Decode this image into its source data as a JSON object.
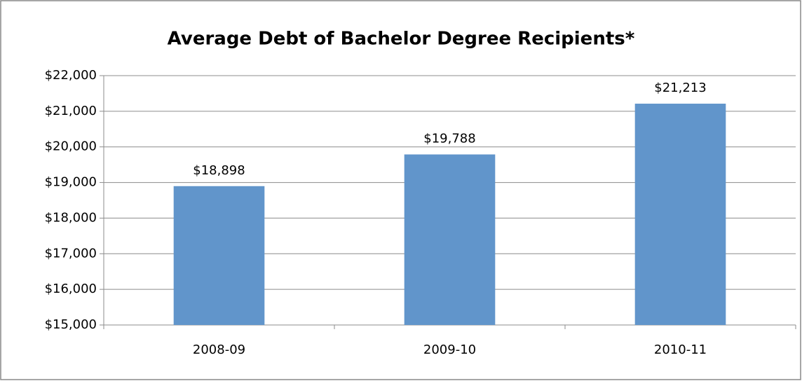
{
  "chart_data": {
    "type": "bar",
    "title": "Average Debt of Bachelor Degree Recipients*",
    "categories": [
      "2008-09",
      "2009-10",
      "2010-11"
    ],
    "values": [
      18898,
      19788,
      21213
    ],
    "value_labels": [
      "$18,898",
      "$19,788",
      "$21,213"
    ],
    "color": "#6195cb",
    "ylim": [
      15000,
      22000
    ],
    "yticks": [
      {
        "value": 15000,
        "label": "$15,000"
      },
      {
        "value": 16000,
        "label": "$16,000"
      },
      {
        "value": 17000,
        "label": "$17,000"
      },
      {
        "value": 18000,
        "label": "$18,000"
      },
      {
        "value": 19000,
        "label": "$19,000"
      },
      {
        "value": 20000,
        "label": "$20,000"
      },
      {
        "value": 21000,
        "label": "$21,000"
      },
      {
        "value": 22000,
        "label": "$22,000"
      }
    ],
    "grid": true
  }
}
